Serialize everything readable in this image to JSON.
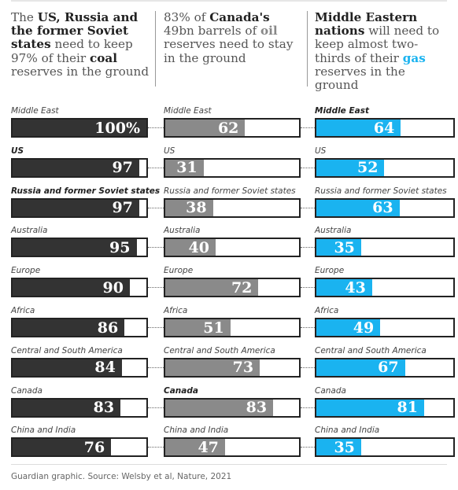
{
  "headers": [
    {
      "html_parts": [
        {
          "t": "The ",
          "b": false
        },
        {
          "t": "US, Russia and the former Soviet states",
          "b": true
        },
        {
          "t": " need to keep 97% of their ",
          "b": false
        },
        {
          "t": "coal",
          "b": true
        },
        {
          "t": " reserves in the ground",
          "b": false
        }
      ]
    },
    {
      "html_parts": [
        {
          "t": "83% of ",
          "b": false
        },
        {
          "t": "Canada's",
          "b": true
        },
        {
          "t": " 49bn barrels of ",
          "b": false
        },
        {
          "t": "oil",
          "b": true,
          "color": "#888888"
        },
        {
          "t": " reserves need to stay in the ground",
          "b": false
        }
      ]
    },
    {
      "html_parts": [
        {
          "t": "Middle Eastern nations",
          "b": true
        },
        {
          "t": " will need to keep almost two-thirds of their ",
          "b": false
        },
        {
          "t": "gas",
          "b": true,
          "color": "#1ab3f0"
        },
        {
          "t": " reserves in the ground",
          "b": false
        }
      ]
    }
  ],
  "chart_data": {
    "type": "bar",
    "categories": [
      "Middle East",
      "US",
      "Russia and former Soviet states",
      "Australia",
      "Europe",
      "Africa",
      "Central and South America",
      "Canada",
      "China and India"
    ],
    "series": [
      {
        "name": "coal",
        "color": "#333333",
        "values": [
          100,
          97,
          97,
          95,
          90,
          86,
          84,
          83,
          76
        ],
        "bold_labels": [
          false,
          true,
          true,
          false,
          false,
          false,
          false,
          false,
          false
        ]
      },
      {
        "name": "oil",
        "color": "#8a8a8a",
        "values": [
          62,
          31,
          38,
          40,
          72,
          51,
          73,
          83,
          47
        ],
        "bold_labels": [
          false,
          false,
          false,
          false,
          false,
          false,
          false,
          true,
          false
        ]
      },
      {
        "name": "gas",
        "color": "#1ab3f0",
        "values": [
          64,
          52,
          63,
          35,
          43,
          49,
          67,
          81,
          35
        ],
        "bold_labels": [
          true,
          false,
          false,
          false,
          false,
          false,
          false,
          false,
          false
        ]
      }
    ],
    "value_suffix_first": "%",
    "xlim": [
      0,
      100
    ]
  },
  "footer": "Guardian graphic. Source: Welsby et al, Nature, 2021"
}
